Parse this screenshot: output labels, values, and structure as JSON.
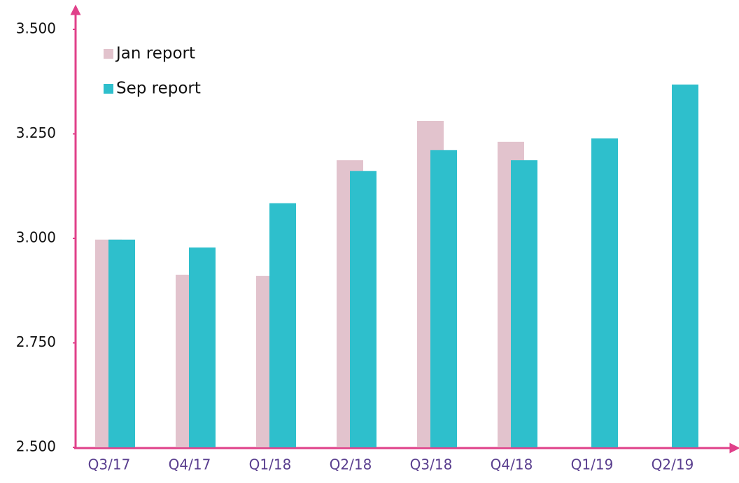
{
  "chart_data": {
    "type": "bar",
    "categories": [
      "Q3/17",
      "Q4/17",
      "Q1/18",
      "Q2/18",
      "Q3/18",
      "Q4/18",
      "Q1/19",
      "Q2/19"
    ],
    "series": [
      {
        "name": "Jan report",
        "color": "#e2c3cd",
        "values": [
          2997,
          2913,
          2910,
          3187,
          3281,
          3231,
          null,
          null
        ]
      },
      {
        "name": "Sep report",
        "color": "#2ebfcc",
        "values": [
          2997,
          2978,
          3084,
          3161,
          3211,
          3187,
          3239,
          3368
        ]
      }
    ],
    "ylim": [
      2500,
      3500
    ],
    "yticks": [
      {
        "value": 2500,
        "label": "2.500"
      },
      {
        "value": 2750,
        "label": "2.750"
      },
      {
        "value": 3000,
        "label": "3.000"
      },
      {
        "value": 3250,
        "label": "3.250"
      },
      {
        "value": 3500,
        "label": "3.500"
      }
    ],
    "grid": false,
    "legend": "upper left"
  }
}
